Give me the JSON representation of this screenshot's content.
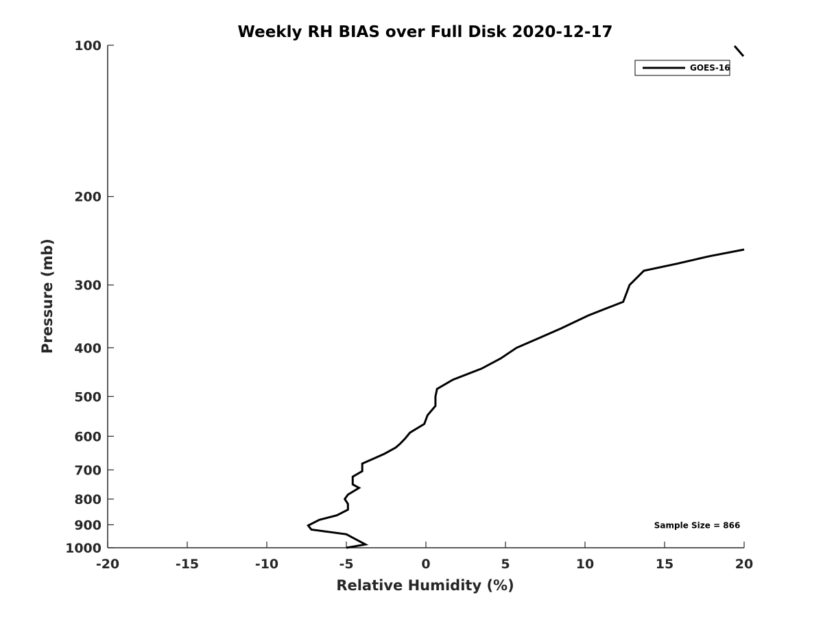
{
  "chart_data": {
    "type": "line",
    "title": "Weekly RH BIAS over Full Disk 2020-12-17",
    "xlabel": "Relative Humidity (%)",
    "ylabel": "Pressure (mb)",
    "xlim": [
      -20,
      20
    ],
    "ylim": [
      100,
      1000
    ],
    "yscale": "log",
    "y_reversed": true,
    "grid": false,
    "xticks": [
      -20,
      -15,
      -10,
      -5,
      0,
      5,
      10,
      15,
      20
    ],
    "yticks": [
      100,
      200,
      300,
      400,
      500,
      600,
      700,
      800,
      900,
      1000
    ],
    "legend_position": "top-right",
    "series": [
      {
        "name": "GOES-16",
        "color": "#000000",
        "points": [
          {
            "x": -5,
            "y": 1000
          },
          {
            "x": -3.8,
            "y": 985
          },
          {
            "x": -5,
            "y": 940
          },
          {
            "x": -7.2,
            "y": 920
          },
          {
            "x": -7.4,
            "y": 903
          },
          {
            "x": -6.7,
            "y": 880
          },
          {
            "x": -5.6,
            "y": 862
          },
          {
            "x": -4.9,
            "y": 840
          },
          {
            "x": -4.9,
            "y": 818
          },
          {
            "x": -5.1,
            "y": 800
          },
          {
            "x": -4.9,
            "y": 784
          },
          {
            "x": -4.2,
            "y": 760
          },
          {
            "x": -4.6,
            "y": 748
          },
          {
            "x": -4.6,
            "y": 722
          },
          {
            "x": -4,
            "y": 704
          },
          {
            "x": -4,
            "y": 680
          },
          {
            "x": -3.3,
            "y": 665
          },
          {
            "x": -2.6,
            "y": 650
          },
          {
            "x": -1.9,
            "y": 632
          },
          {
            "x": -1.6,
            "y": 620
          },
          {
            "x": -1.3,
            "y": 606
          },
          {
            "x": -1.0,
            "y": 590
          },
          {
            "x": -0.1,
            "y": 567
          },
          {
            "x": 0.1,
            "y": 545
          },
          {
            "x": 0.6,
            "y": 522
          },
          {
            "x": 0.6,
            "y": 500
          },
          {
            "x": 0.7,
            "y": 483
          },
          {
            "x": 1.7,
            "y": 463
          },
          {
            "x": 3.5,
            "y": 440
          },
          {
            "x": 4.7,
            "y": 420
          },
          {
            "x": 5.7,
            "y": 400
          },
          {
            "x": 7.0,
            "y": 384
          },
          {
            "x": 8.5,
            "y": 366
          },
          {
            "x": 10.2,
            "y": 345
          },
          {
            "x": 12.4,
            "y": 324
          },
          {
            "x": 12.8,
            "y": 300
          },
          {
            "x": 13.7,
            "y": 281
          },
          {
            "x": 15.8,
            "y": 272
          },
          {
            "x": 17.8,
            "y": 263
          },
          {
            "x": 20,
            "y": 255
          }
        ]
      }
    ],
    "annotations": [
      {
        "text": "Sample Size = 866",
        "x": 16.8,
        "y": 900
      }
    ]
  }
}
